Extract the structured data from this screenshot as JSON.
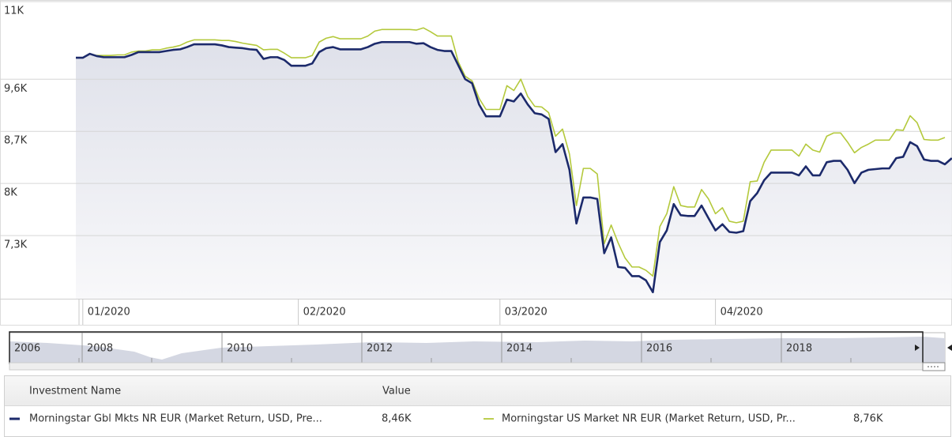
{
  "chart_data": {
    "type": "line",
    "log_scale": true,
    "grid": true,
    "ylim": [
      6505,
      11000
    ],
    "yticks": [
      {
        "value": 11000,
        "label": "11K"
      },
      {
        "value": 9589,
        "label": "9,6K"
      },
      {
        "value": 8745,
        "label": "8,7K"
      },
      {
        "value": 7975,
        "label": "8K"
      },
      {
        "value": 7273,
        "label": "7,3K"
      }
    ],
    "categories": [
      null,
      "01/2020",
      null,
      null,
      null,
      null,
      null,
      null,
      null,
      null,
      null,
      null,
      null,
      null,
      null,
      null,
      null,
      null,
      null,
      null,
      null,
      null,
      null,
      null,
      null,
      null,
      null,
      null,
      null,
      null,
      null,
      null,
      "02/2020",
      null,
      null,
      null,
      null,
      null,
      null,
      null,
      null,
      null,
      null,
      null,
      null,
      null,
      null,
      null,
      null,
      null,
      null,
      null,
      null,
      null,
      null,
      null,
      null,
      null,
      null,
      null,
      null,
      "03/2020",
      null,
      null,
      null,
      null,
      null,
      null,
      null,
      null,
      null,
      null,
      null,
      null,
      null,
      null,
      null,
      null,
      null,
      null,
      null,
      null,
      null,
      null,
      null,
      null,
      null,
      null,
      null,
      null,
      null,
      null,
      "04/2020",
      null,
      null,
      null,
      null,
      null,
      null,
      null,
      null,
      null,
      null,
      null,
      null,
      null,
      null,
      null,
      null,
      null,
      null,
      null,
      null,
      null,
      null,
      null,
      null,
      null,
      null,
      null,
      null,
      null,
      null,
      null,
      null,
      null,
      null
    ],
    "legend_header": {
      "name": "Investment Name",
      "value": "Value"
    },
    "series": [
      {
        "name": "Morningstar Gbl Mkts NR EUR (Market Return, USD, Pre...",
        "color": "#1c2a6b",
        "legend_value": "8,46K",
        "values": [
          9960,
          9960,
          10030,
          9990,
          9970,
          9970,
          9970,
          9970,
          10010,
          10060,
          10060,
          10060,
          10060,
          10080,
          10100,
          10110,
          10150,
          10200,
          10200,
          10200,
          10200,
          10180,
          10150,
          10140,
          10130,
          10110,
          10100,
          9940,
          9970,
          9970,
          9920,
          9820,
          9820,
          9820,
          9860,
          10060,
          10130,
          10150,
          10110,
          10110,
          10110,
          10110,
          10150,
          10210,
          10240,
          10240,
          10240,
          10240,
          10240,
          10210,
          10220,
          10150,
          10100,
          10080,
          10080,
          9830,
          9590,
          9520,
          9170,
          8980,
          8980,
          8980,
          9250,
          9220,
          9350,
          9170,
          9030,
          9010,
          8940,
          8430,
          8550,
          8170,
          7430,
          7780,
          7780,
          7760,
          7050,
          7250,
          6880,
          6870,
          6770,
          6770,
          6720,
          6580,
          7190,
          7340,
          7690,
          7540,
          7530,
          7530,
          7670,
          7500,
          7340,
          7420,
          7320,
          7310,
          7330,
          7730,
          7840,
          8020,
          8130,
          8130,
          8130,
          8130,
          8090,
          8220,
          8090,
          8090,
          8280,
          8300,
          8300,
          8170,
          7980,
          8130,
          8170,
          8180,
          8190,
          8190,
          8340,
          8360,
          8580,
          8520,
          8320,
          8300,
          8300,
          8250,
          8340
        ]
      },
      {
        "name": "Morningstar US Market NR EUR (Market Return, USD, Pr...",
        "color": "#b4c93c",
        "legend_value": "8,76K",
        "values": [
          9960,
          9960,
          10030,
          10000,
          10000,
          10000,
          10010,
          10010,
          10060,
          10080,
          10080,
          10100,
          10100,
          10130,
          10150,
          10180,
          10240,
          10280,
          10280,
          10280,
          10280,
          10270,
          10270,
          10250,
          10220,
          10200,
          10180,
          10100,
          10110,
          10110,
          10040,
          9960,
          9960,
          9960,
          10000,
          10240,
          10310,
          10340,
          10300,
          10300,
          10300,
          10300,
          10350,
          10440,
          10470,
          10470,
          10470,
          10470,
          10470,
          10460,
          10500,
          10430,
          10350,
          10350,
          10350,
          9890,
          9640,
          9560,
          9270,
          9090,
          9090,
          9090,
          9480,
          9400,
          9590,
          9300,
          9140,
          9130,
          9040,
          8670,
          8780,
          8400,
          7670,
          8190,
          8190,
          8110,
          7170,
          7410,
          7180,
          6990,
          6880,
          6880,
          6840,
          6770,
          7390,
          7560,
          7930,
          7670,
          7650,
          7650,
          7890,
          7760,
          7560,
          7640,
          7460,
          7440,
          7460,
          8000,
          8010,
          8280,
          8460,
          8460,
          8460,
          8460,
          8370,
          8550,
          8460,
          8430,
          8670,
          8720,
          8720,
          8580,
          8420,
          8500,
          8550,
          8610,
          8610,
          8610,
          8770,
          8760,
          8990,
          8880,
          8620,
          8610,
          8610,
          8650,
          null
        ]
      }
    ]
  },
  "navigator": {
    "labels": [
      "2006",
      "2008",
      "2010",
      "2012",
      "2014",
      "2016",
      "2018"
    ]
  }
}
